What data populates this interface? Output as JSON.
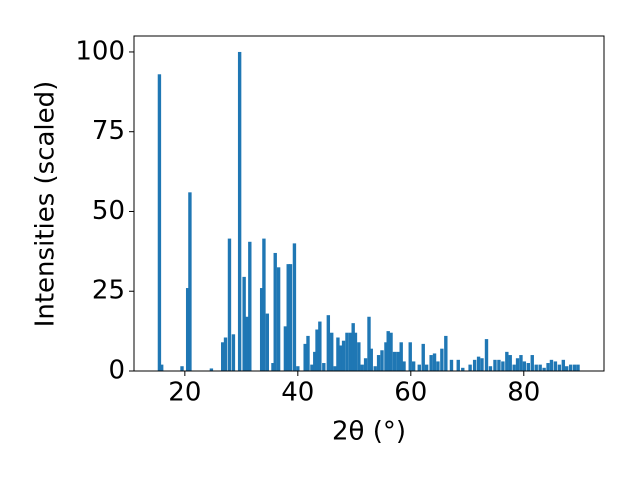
{
  "chart_data": {
    "type": "bar",
    "xlabel": "2θ (°)",
    "ylabel": "Intensities (scaled)",
    "x": [
      15.5,
      15.9,
      19.5,
      20.5,
      20.9,
      24.7,
      26.7,
      27.2,
      27.9,
      28.6,
      29.7,
      30.5,
      31.0,
      31.5,
      33.6,
      34.0,
      34.6,
      35.6,
      36.0,
      36.6,
      37.8,
      38.3,
      38.7,
      39.4,
      40.0,
      41.3,
      41.8,
      42.5,
      43.0,
      43.4,
      43.9,
      44.6,
      45.4,
      46.0,
      46.6,
      47.1,
      47.6,
      48.1,
      48.7,
      49.3,
      49.8,
      50.2,
      50.8,
      51.4,
      52.0,
      52.6,
      53.0,
      53.7,
      54.3,
      54.9,
      55.6,
      56.0,
      56.5,
      57.1,
      57.7,
      58.3,
      58.8,
      59.9,
      60.5,
      61.5,
      62.2,
      62.8,
      63.6,
      64.2,
      64.8,
      65.5,
      66.2,
      67.2,
      68.4,
      69.2,
      70.5,
      71.3,
      72.0,
      72.6,
      73.4,
      74.1,
      74.9,
      75.6,
      76.3,
      77.0,
      77.6,
      78.3,
      78.9,
      79.5,
      80.1,
      80.8,
      81.5,
      82.2,
      82.9,
      83.6,
      84.3,
      84.9,
      85.6,
      86.3,
      87.0,
      87.6,
      88.3,
      89.0,
      89.6
    ],
    "values": [
      93,
      2,
      1.5,
      26,
      56,
      0.8,
      9,
      10.5,
      41.5,
      11.5,
      100,
      29.5,
      17,
      40.5,
      26,
      41.5,
      18,
      2.5,
      37,
      32.5,
      14,
      33.5,
      33.5,
      40,
      1.5,
      8.5,
      11,
      2,
      6,
      13,
      15.5,
      2.5,
      17.5,
      12,
      1.5,
      10.5,
      8,
      9.5,
      12,
      12,
      15,
      12,
      9,
      2,
      4,
      17,
      7,
      1.5,
      5,
      6.5,
      9,
      12.5,
      12,
      6,
      6,
      9,
      3,
      9,
      3,
      2,
      8.5,
      2,
      5,
      5.5,
      3,
      7,
      11,
      3.5,
      3.5,
      1,
      2,
      3.5,
      4.5,
      4,
      10,
      1.5,
      3.5,
      3.5,
      3,
      6,
      5,
      2,
      4,
      5,
      3,
      2.5,
      5,
      2,
      2,
      1,
      2.5,
      3.5,
      3,
      2,
      3.5,
      1.5,
      2,
      2,
      2
    ],
    "color": "#1f77b4",
    "xlim": [
      11,
      94.2
    ],
    "xticks": [
      20,
      40,
      60,
      80
    ],
    "ylim": [
      0,
      105
    ],
    "yticks": [
      0,
      25,
      50,
      75,
      100
    ]
  }
}
